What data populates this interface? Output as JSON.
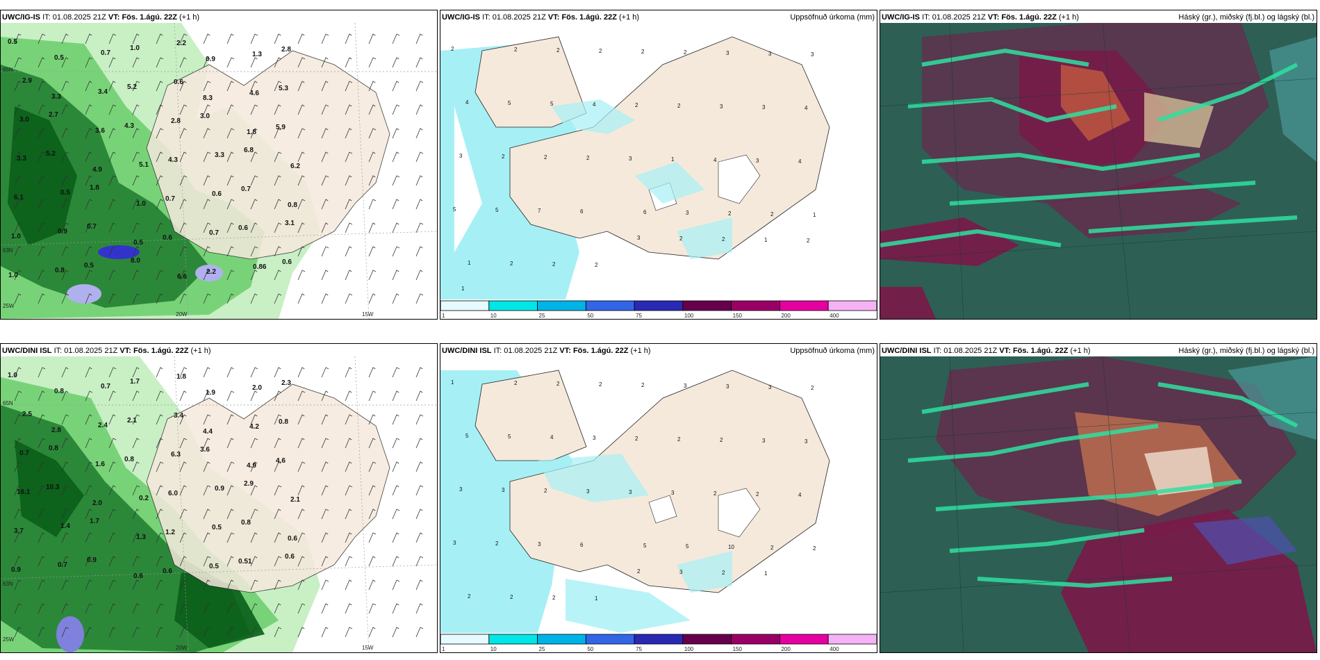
{
  "rows": [
    {
      "model": "UWC/IG-IS",
      "it_label": "IT:",
      "it_value": "01.08.2025 21Z",
      "vt_label": "VT:",
      "vt_value": "Fös. 1.ágú. 22Z",
      "lead": "(+1 h)",
      "wind_values": [
        "0.5",
        "0.5",
        "0.7",
        "1.0",
        "2.2",
        "0.9",
        "1.3",
        "2.8",
        "2.9",
        "3.3",
        "3.4",
        "5.2",
        "0.6",
        "8.3",
        "4.6",
        "5.3",
        "3.0",
        "2.7",
        "3.6",
        "4.3",
        "2.8",
        "3.0",
        "1.8",
        "5.9",
        "3.3",
        "5.2",
        "4.9",
        "5.1",
        "4.3",
        "3.3",
        "6.8",
        "6.2",
        "6.1",
        "0.5",
        "1.8",
        "1.0",
        "0.7",
        "0.6",
        "0.7",
        "0.8",
        "1.0",
        "0.9",
        "0.7",
        "0.5",
        "0.6",
        "0.7",
        "0.6",
        "3.1",
        "1.0",
        "0.8",
        "0.5",
        "8.0",
        "6.6",
        "2.2",
        "0.86",
        "0.6"
      ],
      "lon_labels": [
        "20W",
        "15W",
        "25W"
      ],
      "lat_labels": [
        "65N",
        "63N"
      ]
    },
    {
      "model": "UWC/DINI ISL",
      "it_label": "IT:",
      "it_value": "01.08.2025 21Z",
      "vt_label": "VT:",
      "vt_value": "Fös. 1.ágú. 22Z",
      "lead": "(+1 h)",
      "wind_values": [
        "1.0",
        "0.8",
        "0.7",
        "1.7",
        "1.8",
        "1.9",
        "2.0",
        "2.3",
        "2.5",
        "2.8",
        "2.4",
        "2.1",
        "3.4",
        "4.4",
        "4.2",
        "0.8",
        "0.7",
        "0.8",
        "1.6",
        "0.8",
        "6.3",
        "3.6",
        "4.9",
        "4.6",
        "16.1",
        "10.3",
        "2.0",
        "0.2",
        "6.0",
        "0.9",
        "2.9",
        "2.1",
        "3.7",
        "1.4",
        "1.7",
        "1.3",
        "1.2",
        "0.5",
        "0.8",
        "0.6",
        "0.9",
        "0.7",
        "0.9",
        "0.6",
        "0.6",
        "0.5",
        "0.51",
        "0.6"
      ],
      "lon_labels": [
        "20W",
        "15W",
        "25W"
      ],
      "lat_labels": [
        "65N",
        "63N"
      ]
    }
  ],
  "precip_title": "Uppsöfnuð úrkoma (mm)",
  "cloud_title": "Háský (gr.), miðský (fj.bl.) og lágský (bl.)",
  "precip_values_top": [
    "2",
    "2",
    "2",
    "2",
    "2",
    "2",
    "3",
    "3",
    "3",
    "4",
    "5",
    "5",
    "4",
    "2",
    "2",
    "3",
    "3",
    "4",
    "3",
    "2",
    "2",
    "2",
    "3",
    "1",
    "4",
    "3",
    "4",
    "5",
    "5",
    "7",
    "6",
    "6",
    "3",
    "2",
    "2",
    "1",
    "1",
    "2",
    "2",
    "2",
    "3",
    "2",
    "2",
    "1",
    "2",
    "1"
  ],
  "precip_values_bottom": [
    "1",
    "2",
    "2",
    "2",
    "2",
    "3",
    "3",
    "3",
    "2",
    "5",
    "5",
    "4",
    "3",
    "2",
    "2",
    "2",
    "3",
    "3",
    "3",
    "3",
    "2",
    "3",
    "3",
    "3",
    "2",
    "2",
    "4",
    "3",
    "2",
    "3",
    "6",
    "5",
    "5",
    "10",
    "2",
    "2",
    "2",
    "2",
    "2",
    "1",
    "2",
    "3",
    "2",
    "1"
  ],
  "colorbar": {
    "ticks": [
      "1",
      "10",
      "25",
      "50",
      "75",
      "100",
      "150",
      "200",
      "400"
    ],
    "colors": [
      "#e6fbff",
      "#00e6e6",
      "#00b3e6",
      "#3366e6",
      "#2929b3",
      "#66004d",
      "#990066",
      "#e600a0",
      "#f5b3f5"
    ]
  },
  "colors": {
    "land": "#f5e9dc",
    "sea_prec": "#a6f0f5",
    "wind_green_light": "#c9efc5",
    "wind_green": "#6fcf6f",
    "wind_green_dark": "#0a5e1a",
    "cloud_bg": "#2e5f55",
    "cloud_teal": "#2fe0a0",
    "cloud_maroon": "#7a1848"
  }
}
